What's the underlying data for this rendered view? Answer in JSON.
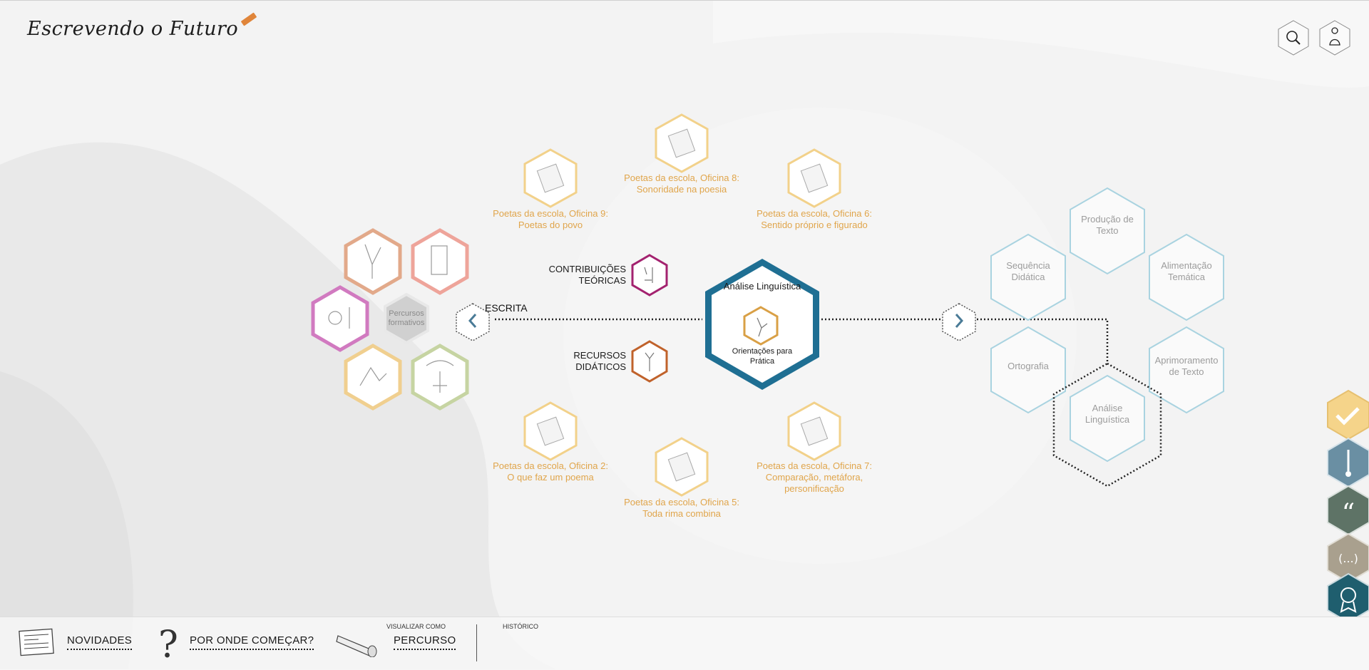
{
  "header": {
    "logo_text": "Escrevendo o Futuro",
    "search_icon": "search-icon",
    "user_icon": "user-icon"
  },
  "center": {
    "title": "Análise Linguística",
    "subtitle": "Orientações para Prática",
    "left_label": "ESCRITA",
    "contribuicoes": "CONTRIBUIÇÕES TEÓRICAS",
    "recursos": "RECURSOS DIDÁTICOS"
  },
  "percursos": {
    "label": "Percursos formativos"
  },
  "oficinas": [
    {
      "line1": "Poetas da escola, Oficina 8:",
      "line2": "Sonoridade na poesia"
    },
    {
      "line1": "Poetas da escola, Oficina 9:",
      "line2": "Poetas do povo"
    },
    {
      "line1": "Poetas da escola, Oficina 6:",
      "line2": "Sentido próprio e figurado"
    },
    {
      "line1": "Poetas da escola, Oficina 2:",
      "line2": "O que faz um poema"
    },
    {
      "line1": "Poetas da escola, Oficina 7:",
      "line2": "Comparação, metáfora,",
      "line3": "personificação"
    },
    {
      "line1": "Poetas da escola, Oficina 5:",
      "line2": "Toda rima combina"
    }
  ],
  "right_hexes": {
    "producao": {
      "line1": "Produção de",
      "line2": "Texto"
    },
    "sequencia": {
      "line1": "Sequência",
      "line2": "Didática"
    },
    "alimentacao": {
      "line1": "Alimentação",
      "line2": "Temática"
    },
    "ortografia": {
      "line1": "Ortografia"
    },
    "aprimoramento": {
      "line1": "Aprimoramento",
      "line2": "de Texto"
    },
    "analise": {
      "line1": "Análise",
      "line2": "Linguística"
    }
  },
  "side_buttons": [
    "check-icon",
    "thermometer-icon",
    "quote-icon",
    "ellipsis-icon",
    "award-icon"
  ],
  "bottom": {
    "novidades": "NOVIDADES",
    "por_onde": "POR ONDE COMEÇAR?",
    "visualizar_como": "VISUALIZAR COMO",
    "percurso": "PERCURSO",
    "historico": "HISTÓRICO"
  },
  "colors": {
    "accent_blue": "#1f6f93",
    "orange": "#e0a54b",
    "light_blue": "#a9d3e0",
    "side_yellow": "#f5d48a",
    "side_teal": "#6a8fa3",
    "side_green": "#5e7366",
    "side_tan": "#a9a08e",
    "side_dark": "#1f5e6e"
  }
}
